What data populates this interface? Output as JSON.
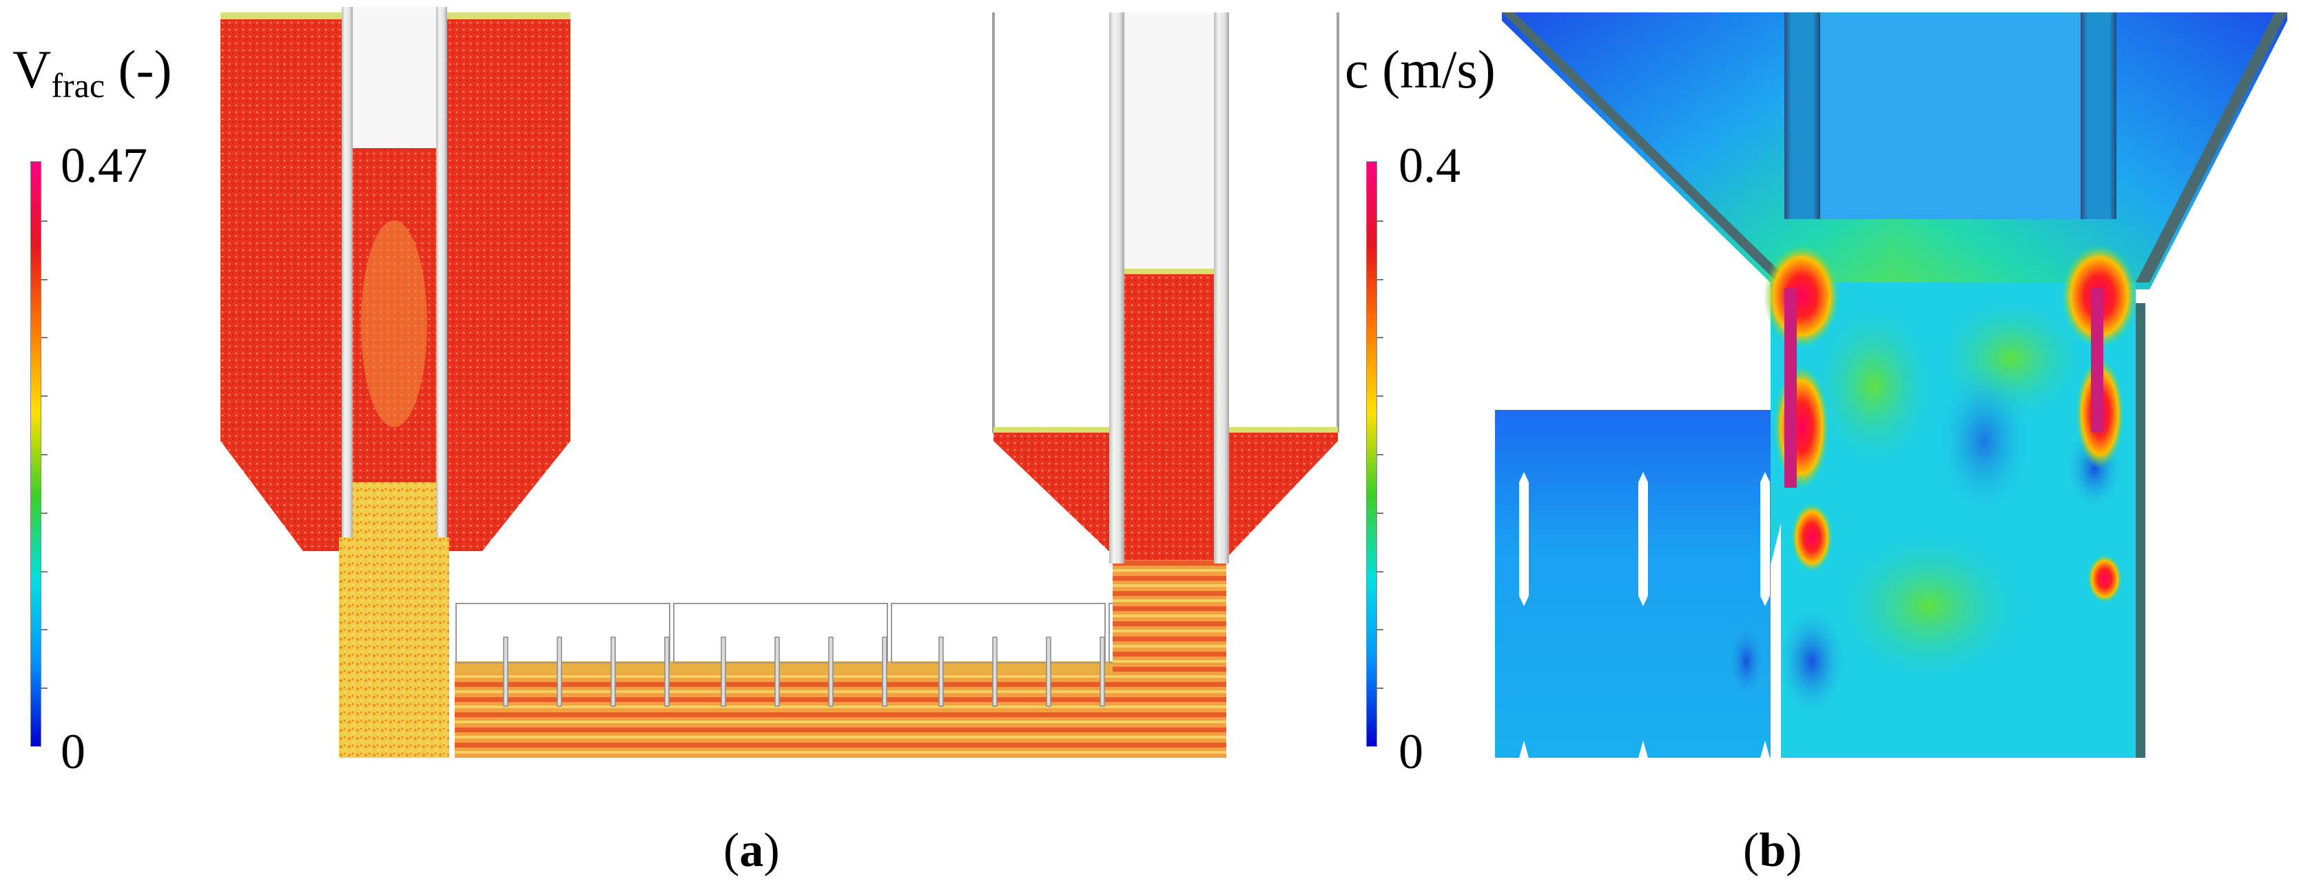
{
  "panel_a": {
    "label_open": "(",
    "label_letter": "a",
    "label_close": ")",
    "colorbar": {
      "title_main": "V",
      "title_sub": "frac",
      "title_unit": " (-)",
      "max_label": "0.47",
      "min_label": "0",
      "stops": [
        "#ff0080",
        "#e8141e",
        "#ff7a00",
        "#ffe000",
        "#3ccf2a",
        "#00e0e0",
        "#0090ff",
        "#0000d0"
      ]
    },
    "fill_colors": {
      "dense": "#e8321e",
      "loose": "#f0c83c",
      "wall": "#cfcfcf"
    }
  },
  "panel_b": {
    "label_open": "(",
    "label_letter": "b",
    "label_close": ")",
    "colorbar": {
      "title": "c (m/s)",
      "max_label": "0.4",
      "min_label": "0",
      "stops": [
        "#ff0080",
        "#e8141e",
        "#ff7a00",
        "#ffe000",
        "#3ccf2a",
        "#00e0e0",
        "#0090ff",
        "#0000d0"
      ]
    },
    "field_colors": {
      "low": "#1e6cf0",
      "mid": "#1ed8e6",
      "green": "#3ddc6a",
      "high": "#ff1e1e",
      "peak": "#e0207a",
      "wall": "#b7c5c8"
    }
  }
}
